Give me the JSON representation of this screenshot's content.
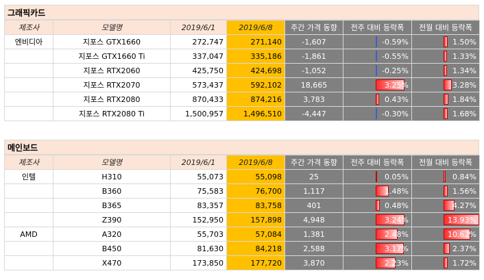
{
  "graphics": {
    "title": "그래픽카드",
    "headers": [
      "제조사",
      "모델명",
      "2019/6/1",
      "2019/6/8",
      "주간 가격 동향",
      "전주 대비 등락폭",
      "전월 대비 등락폭"
    ],
    "rows": [
      {
        "maker": "엔비디아",
        "model": "지포스 GTX1660",
        "p1": "272,747",
        "p2": "271,140",
        "weekly": "-1,607",
        "wow": "-0.59%",
        "mom": "1.50%"
      },
      {
        "maker": "",
        "model": "지포스 GTX1660 Ti",
        "p1": "337,047",
        "p2": "335,186",
        "weekly": "-1,861",
        "wow": "-0.55%",
        "mom": "1.33%"
      },
      {
        "maker": "",
        "model": "지포스 RTX2060",
        "p1": "425,750",
        "p2": "424,698",
        "weekly": "-1,052",
        "wow": "-0.25%",
        "mom": "1.34%"
      },
      {
        "maker": "",
        "model": "지포스 RTX2070",
        "p1": "573,437",
        "p2": "592,102",
        "weekly": "18,665",
        "wow": "3.25%",
        "mom": "3.28%"
      },
      {
        "maker": "",
        "model": "지포스 RTX2080",
        "p1": "870,433",
        "p2": "874,216",
        "weekly": "3,783",
        "wow": "0.43%",
        "mom": "1.84%"
      },
      {
        "maker": "",
        "model": "지포스 RTX2080 Ti",
        "p1": "1,500,957",
        "p2": "1,496,510",
        "weekly": "-4,447",
        "wow": "-0.30%",
        "mom": "1.68%"
      }
    ]
  },
  "mainboard": {
    "title": "메인보드",
    "headers": [
      "제조사",
      "모델명",
      "2019/6/1",
      "2019/6/8",
      "주간 가격 동향",
      "전주 대비 등락폭",
      "전월 대비 등락폭"
    ],
    "rows": [
      {
        "maker": "인텔",
        "model": "H310",
        "p1": "55,073",
        "p2": "55,098",
        "weekly": "25",
        "wow": "0.05%",
        "mom": "0.84%"
      },
      {
        "maker": "",
        "model": "B360",
        "p1": "75,583",
        "p2": "76,700",
        "weekly": "1,117",
        "wow": "1.48%",
        "mom": "1.56%"
      },
      {
        "maker": "",
        "model": "B365",
        "p1": "83,357",
        "p2": "83,758",
        "weekly": "401",
        "wow": "0.48%",
        "mom": "4.27%"
      },
      {
        "maker": "",
        "model": "Z390",
        "p1": "152,950",
        "p2": "157,898",
        "weekly": "4,948",
        "wow": "3.24%",
        "mom": "13.93%"
      },
      {
        "maker": "AMD",
        "model": "A320",
        "p1": "55,703",
        "p2": "57,084",
        "weekly": "1,381",
        "wow": "2.48%",
        "mom": "10.62%"
      },
      {
        "maker": "",
        "model": "B450",
        "p1": "81,630",
        "p2": "84,218",
        "weekly": "2,588",
        "wow": "3.17%",
        "mom": "2.37%"
      },
      {
        "maker": "",
        "model": "X470",
        "p1": "173,850",
        "p2": "177,720",
        "weekly": "3,870",
        "wow": "2.23%",
        "mom": "1.72%"
      }
    ]
  }
}
